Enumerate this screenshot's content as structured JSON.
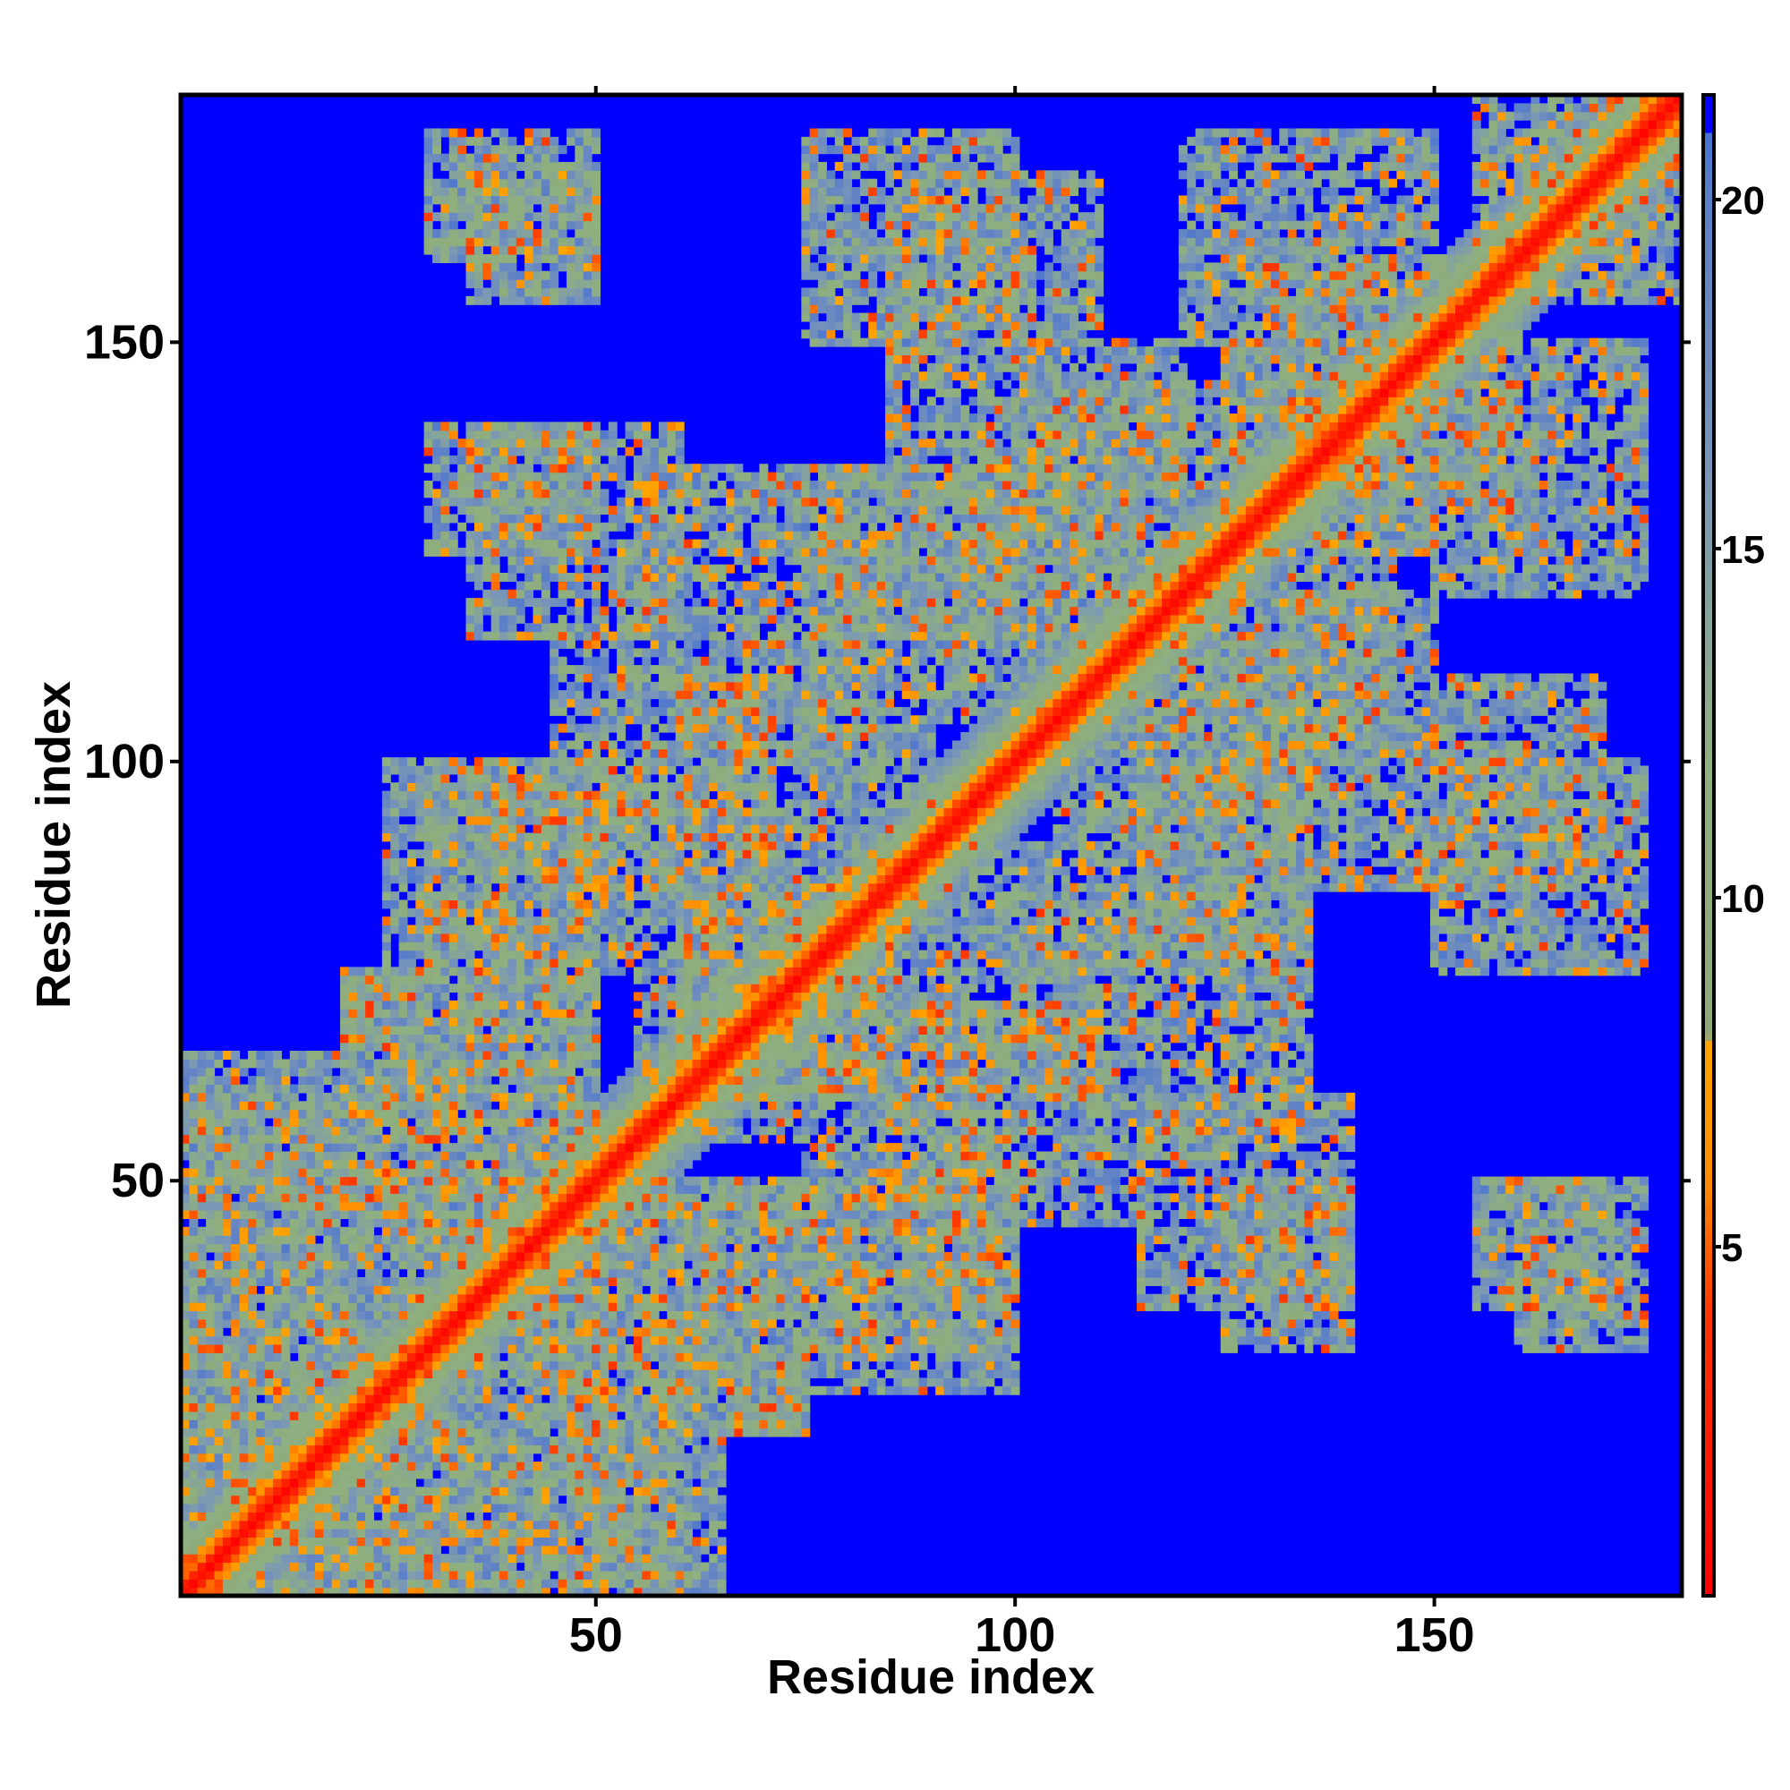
{
  "chart_data": {
    "type": "heatmap",
    "title": "",
    "xlabel": "Residue index",
    "ylabel": "Residue index",
    "xlim": [
      1,
      179
    ],
    "ylim": [
      1,
      179
    ],
    "n_residues": 179,
    "x_ticks": [
      "50",
      "100",
      "150"
    ],
    "x_tick_values": [
      50,
      100,
      150
    ],
    "y_ticks": [
      "50",
      "100",
      "150"
    ],
    "y_tick_values": [
      50,
      100,
      150
    ],
    "colorbar": {
      "range": [
        0,
        21.5
      ],
      "ticks": [
        "5",
        "10",
        "15",
        "20"
      ],
      "tick_values": [
        5,
        10,
        15,
        20
      ],
      "stops": [
        {
          "value": 0,
          "color": "#ff0000"
        },
        {
          "value": 4,
          "color": "#ff3300"
        },
        {
          "value": 6,
          "color": "#ff8c00"
        },
        {
          "value": 8,
          "color": "#ffa500"
        },
        {
          "value": 8.01,
          "color": "#8fa87a"
        },
        {
          "value": 12,
          "color": "#8fb080"
        },
        {
          "value": 16,
          "color": "#7a96b8"
        },
        {
          "value": 20,
          "color": "#5b7fc8"
        },
        {
          "value": 21.5,
          "color": "#3d6bd6"
        }
      ]
    },
    "background_color": "#0000ff",
    "contact_cutoff": 21,
    "diagonal_band_halfwidth": 5,
    "contact_regions": [
      {
        "x": [
          1,
          35
        ],
        "y": [
          1,
          35
        ]
      },
      {
        "x": [
          1,
          20
        ],
        "y": [
          30,
          60
        ]
      },
      {
        "x": [
          30,
          65
        ],
        "y": [
          1,
          30
        ]
      },
      {
        "x": [
          20,
          50
        ],
        "y": [
          40,
          75
        ]
      },
      {
        "x": [
          40,
          75
        ],
        "y": [
          20,
          50
        ]
      },
      {
        "x": [
          25,
          50
        ],
        "y": [
          75,
          100
        ]
      },
      {
        "x": [
          60,
          90
        ],
        "y": [
          55,
          85
        ]
      },
      {
        "x": [
          75,
          100
        ],
        "y": [
          30,
          60
        ]
      },
      {
        "x": [
          45,
          70
        ],
        "y": [
          85,
          115
        ]
      },
      {
        "x": [
          80,
          110
        ],
        "y": [
          60,
          90
        ]
      },
      {
        "x": [
          55,
          85
        ],
        "y": [
          105,
          135
        ]
      },
      {
        "x": [
          105,
          135
        ],
        "y": [
          75,
          110
        ]
      },
      {
        "x": [
          85,
          120
        ],
        "y": [
          115,
          150
        ]
      },
      {
        "x": [
          120,
          145
        ],
        "y": [
          100,
          130
        ]
      },
      {
        "x": [
          75,
          100
        ],
        "y": [
          150,
          175
        ]
      },
      {
        "x": [
          125,
          150
        ],
        "y": [
          125,
          150
        ]
      },
      {
        "x": [
          140,
          160
        ],
        "y": [
          130,
          155
        ]
      },
      {
        "x": [
          150,
          170
        ],
        "y": [
          85,
          110
        ]
      },
      {
        "x": [
          120,
          150
        ],
        "y": [
          150,
          175
        ]
      },
      {
        "x": [
          155,
          175
        ],
        "y": [
          160,
          179
        ]
      },
      {
        "x": [
          115,
          140
        ],
        "y": [
          35,
          60
        ]
      },
      {
        "x": [
          155,
          170
        ],
        "y": [
          35,
          50
        ]
      },
      {
        "x": [
          30,
          50
        ],
        "y": [
          160,
          175
        ]
      },
      {
        "x": [
          30,
          50
        ],
        "y": [
          125,
          140
        ]
      }
    ]
  }
}
